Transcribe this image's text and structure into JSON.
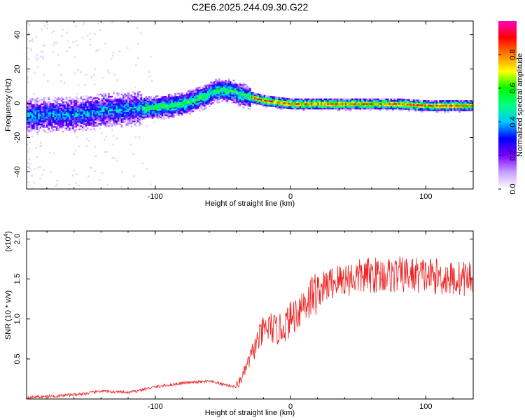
{
  "chart_data": [
    {
      "type": "heatmap",
      "title": "C2E6.2025.244.09.30.G22",
      "xlabel": "Height of straight line (km)",
      "ylabel": "Frequency (Hz)",
      "xlim": [
        -195,
        135
      ],
      "ylim": [
        -50,
        48
      ],
      "xticks": [
        -100,
        0,
        100
      ],
      "xtick_labels": [
        "-100",
        "0",
        "100"
      ],
      "yticks": [
        -40,
        -20,
        0,
        20,
        40
      ],
      "ytick_labels": [
        "-40",
        "-20",
        "0",
        "20",
        "40"
      ],
      "ridge": {
        "x": [
          -195,
          -180,
          -160,
          -140,
          -120,
          -100,
          -80,
          -65,
          -55,
          -45,
          -35,
          -20,
          -10,
          0,
          20,
          40,
          60,
          80,
          100,
          120,
          135
        ],
        "y": [
          -7,
          -6,
          -6,
          -4,
          -3,
          -2,
          0,
          4,
          8,
          8,
          5,
          2,
          1,
          0,
          0,
          0,
          0,
          0,
          -1,
          -1,
          -1
        ]
      },
      "colorbar": {
        "label": "Normalized spectral amplitude",
        "ticks": [
          0.0,
          0.2,
          0.4,
          0.6,
          0.8
        ],
        "tick_labels": [
          "0.0",
          "0.2",
          "0.4",
          "0.6",
          "0.8"
        ],
        "range": [
          0,
          1
        ],
        "colors": [
          "#ffffff",
          "#c8a0ff",
          "#7a00ff",
          "#0000ff",
          "#00c8ff",
          "#00ff80",
          "#00ff00",
          "#ffff00",
          "#ff8000",
          "#ff0000",
          "#ff00c0"
        ]
      }
    },
    {
      "type": "line",
      "xlabel": "Height of straight line (km)",
      "ylabel": "SNR (10 * v/v)",
      "ylabel_multiplier": "(x10",
      "ylabel_exponent": "4",
      "ylabel_close": ")",
      "xlim": [
        -195,
        135
      ],
      "ylim": [
        0,
        2.1
      ],
      "xticks": [
        -100,
        0,
        100
      ],
      "xtick_labels": [
        "-100",
        "0",
        "100"
      ],
      "yticks": [
        0.5,
        1.0,
        1.5,
        2.0
      ],
      "ytick_labels": [
        "0.5",
        "1.0",
        "1.5",
        "2.0"
      ],
      "color": "#ee2222",
      "envelope": {
        "x": [
          -195,
          -170,
          -150,
          -140,
          -120,
          -100,
          -80,
          -60,
          -40,
          -35,
          -30,
          -25,
          -20,
          -15,
          -10,
          -5,
          0,
          10,
          20,
          30,
          40,
          60,
          80,
          100,
          120,
          135
        ],
        "y": [
          0.02,
          0.04,
          0.07,
          0.1,
          0.08,
          0.15,
          0.2,
          0.22,
          0.15,
          0.3,
          0.5,
          0.7,
          0.85,
          0.9,
          0.85,
          0.9,
          1.0,
          1.2,
          1.35,
          1.45,
          1.5,
          1.55,
          1.55,
          1.55,
          1.5,
          1.52
        ]
      }
    }
  ]
}
